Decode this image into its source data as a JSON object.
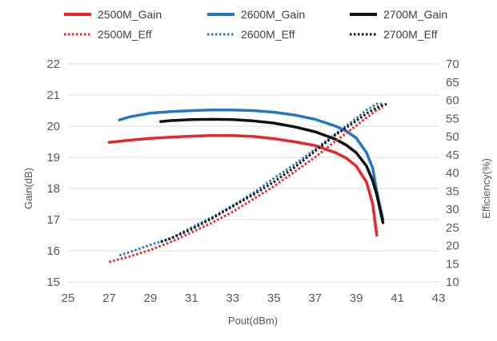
{
  "chart_data": {
    "type": "line",
    "xlabel": "Pout(dBm)",
    "ylabel": "Gain(dB)",
    "y2label": "Efficiency(%)",
    "xlim": [
      25,
      43
    ],
    "ylim": [
      15,
      22
    ],
    "y2lim": [
      10,
      70
    ],
    "xticks": [
      25,
      27,
      29,
      31,
      33,
      35,
      37,
      39,
      41,
      43
    ],
    "yticks": [
      15,
      16,
      17,
      18,
      19,
      20,
      21,
      22
    ],
    "y2ticks": [
      10,
      15,
      20,
      25,
      30,
      35,
      40,
      45,
      50,
      55,
      60,
      65,
      70
    ],
    "grid": true,
    "legend_position": "top",
    "series": [
      {
        "name": "2500M_Gain",
        "axis": "left",
        "style": "solid",
        "color": "#e8262a",
        "points": [
          [
            27.0,
            19.48
          ],
          [
            28.0,
            19.55
          ],
          [
            29.0,
            19.61
          ],
          [
            30.0,
            19.65
          ],
          [
            31.0,
            19.68
          ],
          [
            32.0,
            19.7
          ],
          [
            33.0,
            19.7
          ],
          [
            34.0,
            19.67
          ],
          [
            35.0,
            19.6
          ],
          [
            36.0,
            19.5
          ],
          [
            37.0,
            19.38
          ],
          [
            38.0,
            19.15
          ],
          [
            38.5,
            18.98
          ],
          [
            39.0,
            18.72
          ],
          [
            39.5,
            18.2
          ],
          [
            39.8,
            17.5
          ],
          [
            40.0,
            16.5
          ]
        ]
      },
      {
        "name": "2600M_Gain",
        "axis": "left",
        "style": "solid",
        "color": "#2478c0",
        "points": [
          [
            27.5,
            20.2
          ],
          [
            28.0,
            20.3
          ],
          [
            29.0,
            20.42
          ],
          [
            30.0,
            20.47
          ],
          [
            31.0,
            20.5
          ],
          [
            32.0,
            20.52
          ],
          [
            33.0,
            20.52
          ],
          [
            34.0,
            20.5
          ],
          [
            35.0,
            20.45
          ],
          [
            36.0,
            20.36
          ],
          [
            37.0,
            20.22
          ],
          [
            38.0,
            20.0
          ],
          [
            38.5,
            19.85
          ],
          [
            39.0,
            19.62
          ],
          [
            39.5,
            19.15
          ],
          [
            39.8,
            18.65
          ],
          [
            40.0,
            17.9
          ],
          [
            40.3,
            17.0
          ]
        ]
      },
      {
        "name": "2700M_Gain",
        "axis": "left",
        "style": "solid",
        "color": "#111111",
        "points": [
          [
            29.5,
            20.15
          ],
          [
            30.0,
            20.18
          ],
          [
            31.0,
            20.21
          ],
          [
            32.0,
            20.22
          ],
          [
            33.0,
            20.21
          ],
          [
            34.0,
            20.17
          ],
          [
            35.0,
            20.1
          ],
          [
            36.0,
            19.98
          ],
          [
            37.0,
            19.82
          ],
          [
            38.0,
            19.58
          ],
          [
            38.5,
            19.4
          ],
          [
            39.0,
            19.15
          ],
          [
            39.5,
            18.72
          ],
          [
            39.8,
            18.25
          ],
          [
            40.0,
            17.8
          ],
          [
            40.3,
            16.9
          ]
        ]
      },
      {
        "name": "2500M_Eff",
        "axis": "right",
        "style": "dotted",
        "color": "#e8262a",
        "points": [
          [
            27.0,
            15.5
          ],
          [
            28.0,
            17.0
          ],
          [
            29.0,
            18.8
          ],
          [
            30.0,
            21.0
          ],
          [
            31.0,
            23.6
          ],
          [
            32.0,
            26.3
          ],
          [
            33.0,
            29.3
          ],
          [
            34.0,
            32.8
          ],
          [
            35.0,
            36.3
          ],
          [
            36.0,
            40.3
          ],
          [
            37.0,
            44.3
          ],
          [
            38.0,
            48.8
          ],
          [
            39.0,
            53.0
          ],
          [
            39.5,
            55.2
          ],
          [
            40.0,
            57.3
          ],
          [
            40.3,
            58.0
          ]
        ]
      },
      {
        "name": "2600M_Eff",
        "axis": "right",
        "style": "dotted",
        "color": "#2478c0",
        "points": [
          [
            27.5,
            17.3
          ],
          [
            28.0,
            18.2
          ],
          [
            29.0,
            20.2
          ],
          [
            30.0,
            22.0
          ],
          [
            31.0,
            25.0
          ],
          [
            32.0,
            27.8
          ],
          [
            33.0,
            31.0
          ],
          [
            34.0,
            34.5
          ],
          [
            35.0,
            38.5
          ],
          [
            36.0,
            42.3
          ],
          [
            37.0,
            46.5
          ],
          [
            38.0,
            50.8
          ],
          [
            39.0,
            55.0
          ],
          [
            39.5,
            57.3
          ],
          [
            40.0,
            59.0
          ],
          [
            40.3,
            59.0
          ]
        ]
      },
      {
        "name": "2700M_Eff",
        "axis": "right",
        "style": "dotted",
        "color": "#111111",
        "points": [
          [
            29.5,
            21.0
          ],
          [
            30.0,
            22.0
          ],
          [
            31.0,
            24.5
          ],
          [
            32.0,
            27.5
          ],
          [
            33.0,
            30.8
          ],
          [
            34.0,
            34.0
          ],
          [
            35.0,
            37.5
          ],
          [
            36.0,
            41.5
          ],
          [
            37.0,
            46.0
          ],
          [
            38.0,
            50.5
          ],
          [
            39.0,
            54.3
          ],
          [
            39.5,
            56.3
          ],
          [
            40.0,
            58.0
          ],
          [
            40.5,
            59.0
          ]
        ]
      }
    ]
  }
}
